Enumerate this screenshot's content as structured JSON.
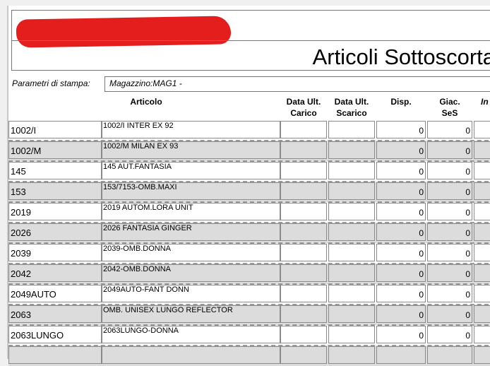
{
  "report": {
    "title": "Articoli Sottoscorta",
    "params_label": "Parametri di stampa:",
    "params_value": "Magazzino:MAG1   -"
  },
  "columns": {
    "articolo": "Articolo",
    "data_carico": [
      "Data Ult.",
      "Carico"
    ],
    "data_scarico": [
      "Data Ult.",
      "Scarico"
    ],
    "disp": "Disp.",
    "giac": [
      "Giac.",
      "SeS"
    ],
    "next": "In"
  },
  "rows": [
    {
      "code": "1002/I",
      "desc": "1002/I INTER EX 92",
      "carico": "",
      "scarico": "",
      "disp": "0",
      "giac": "0"
    },
    {
      "code": "1002/M",
      "desc": "1002/M MILAN EX 93",
      "carico": "",
      "scarico": "",
      "disp": "0",
      "giac": "0"
    },
    {
      "code": "145",
      "desc": "145 AUT.FANTASIA",
      "carico": "",
      "scarico": "",
      "disp": "0",
      "giac": "0"
    },
    {
      "code": "153",
      "desc": "153/7153-OMB.MAXI",
      "carico": "",
      "scarico": "",
      "disp": "0",
      "giac": "0"
    },
    {
      "code": "2019",
      "desc": "2019 AUTOM.LORA UNIT",
      "carico": "",
      "scarico": "",
      "disp": "0",
      "giac": "0"
    },
    {
      "code": "2026",
      "desc": "2026 FANTASIA GINGER",
      "carico": "",
      "scarico": "",
      "disp": "0",
      "giac": "0"
    },
    {
      "code": "2039",
      "desc": "2039-OMB.DONNA",
      "carico": "",
      "scarico": "",
      "disp": "0",
      "giac": "0"
    },
    {
      "code": "2042",
      "desc": "2042-OMB.DONNA",
      "carico": "",
      "scarico": "",
      "disp": "0",
      "giac": "0"
    },
    {
      "code": "2049AUTO",
      "desc": "2049AUTO-FANT DONN",
      "carico": "",
      "scarico": "",
      "disp": "0",
      "giac": "0"
    },
    {
      "code": "2063",
      "desc": "OMB. UNISEX LUNGO REFLECTOR",
      "carico": "",
      "scarico": "",
      "disp": "0",
      "giac": "0"
    },
    {
      "code": "2063LUNGO",
      "desc": "2063LUNGO-DONNA",
      "carico": "",
      "scarico": "",
      "disp": "0",
      "giac": "0"
    }
  ]
}
